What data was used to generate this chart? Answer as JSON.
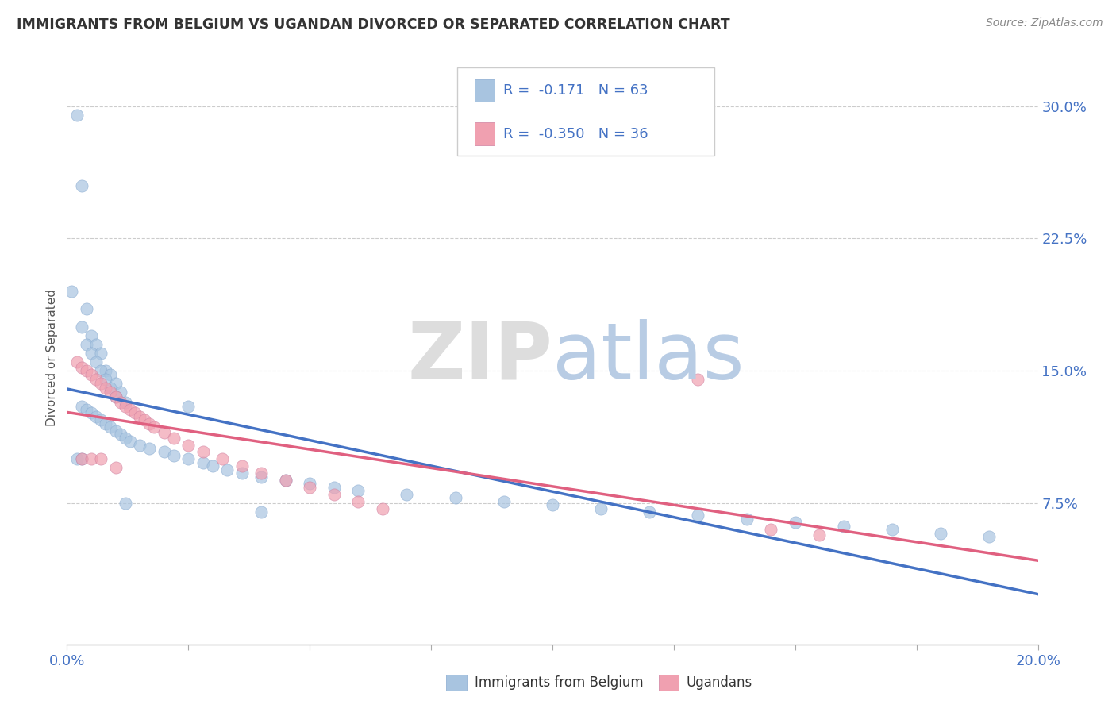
{
  "title": "IMMIGRANTS FROM BELGIUM VS UGANDAN DIVORCED OR SEPARATED CORRELATION CHART",
  "source": "Source: ZipAtlas.com",
  "ylabel": "Divorced or Separated",
  "xlim": [
    0.0,
    0.2
  ],
  "ylim": [
    -0.005,
    0.32
  ],
  "xticks": [
    0.0,
    0.025,
    0.05,
    0.075,
    0.1,
    0.125,
    0.15,
    0.175,
    0.2
  ],
  "xtick_labels": [
    "0.0%",
    "",
    "",
    "",
    "",
    "",
    "",
    "",
    "20.0%"
  ],
  "yticks": [
    0.0,
    0.075,
    0.15,
    0.225,
    0.3
  ],
  "ytick_labels": [
    "",
    "7.5%",
    "15.0%",
    "22.5%",
    "30.0%"
  ],
  "blue_color": "#a8c4e0",
  "pink_color": "#f0a0b0",
  "blue_line_color": "#4472c4",
  "pink_line_color": "#e06080",
  "blue_R": -0.171,
  "blue_N": 63,
  "pink_R": -0.35,
  "pink_N": 36,
  "legend_label_blue": "Immigrants from Belgium",
  "legend_label_pink": "Ugandans",
  "grid_color": "#cccccc",
  "title_color": "#333333",
  "axis_color": "#4472c4",
  "blue_scatter_x": [
    0.002,
    0.003,
    0.001,
    0.004,
    0.003,
    0.005,
    0.004,
    0.006,
    0.005,
    0.007,
    0.006,
    0.008,
    0.007,
    0.009,
    0.008,
    0.01,
    0.009,
    0.011,
    0.01,
    0.012,
    0.003,
    0.004,
    0.005,
    0.006,
    0.007,
    0.008,
    0.009,
    0.01,
    0.011,
    0.012,
    0.013,
    0.015,
    0.017,
    0.02,
    0.022,
    0.025,
    0.028,
    0.03,
    0.033,
    0.036,
    0.04,
    0.045,
    0.05,
    0.055,
    0.06,
    0.07,
    0.08,
    0.09,
    0.1,
    0.11,
    0.12,
    0.13,
    0.14,
    0.15,
    0.16,
    0.17,
    0.18,
    0.19,
    0.002,
    0.003,
    0.025,
    0.04,
    0.012
  ],
  "blue_scatter_y": [
    0.295,
    0.255,
    0.195,
    0.185,
    0.175,
    0.17,
    0.165,
    0.165,
    0.16,
    0.16,
    0.155,
    0.15,
    0.15,
    0.148,
    0.145,
    0.143,
    0.14,
    0.138,
    0.135,
    0.132,
    0.13,
    0.128,
    0.126,
    0.124,
    0.122,
    0.12,
    0.118,
    0.116,
    0.114,
    0.112,
    0.11,
    0.108,
    0.106,
    0.104,
    0.102,
    0.1,
    0.098,
    0.096,
    0.094,
    0.092,
    0.09,
    0.088,
    0.086,
    0.084,
    0.082,
    0.08,
    0.078,
    0.076,
    0.074,
    0.072,
    0.07,
    0.068,
    0.066,
    0.064,
    0.062,
    0.06,
    0.058,
    0.056,
    0.1,
    0.1,
    0.13,
    0.07,
    0.075
  ],
  "pink_scatter_x": [
    0.002,
    0.003,
    0.004,
    0.005,
    0.006,
    0.007,
    0.008,
    0.009,
    0.01,
    0.011,
    0.012,
    0.013,
    0.014,
    0.015,
    0.016,
    0.017,
    0.018,
    0.02,
    0.022,
    0.025,
    0.028,
    0.032,
    0.036,
    0.04,
    0.045,
    0.05,
    0.055,
    0.06,
    0.065,
    0.003,
    0.005,
    0.007,
    0.01,
    0.13,
    0.145,
    0.155
  ],
  "pink_scatter_y": [
    0.155,
    0.152,
    0.15,
    0.148,
    0.145,
    0.143,
    0.14,
    0.138,
    0.135,
    0.132,
    0.13,
    0.128,
    0.126,
    0.124,
    0.122,
    0.12,
    0.118,
    0.115,
    0.112,
    0.108,
    0.104,
    0.1,
    0.096,
    0.092,
    0.088,
    0.084,
    0.08,
    0.076,
    0.072,
    0.1,
    0.1,
    0.1,
    0.095,
    0.145,
    0.06,
    0.057
  ]
}
